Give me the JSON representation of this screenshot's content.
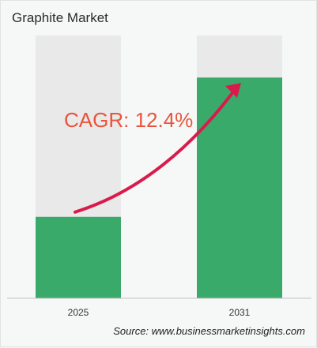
{
  "title": "Graphite Market",
  "source": "Source: www.businessmarketinsights.com",
  "annotation": "CAGR: 12.4%",
  "colors": {
    "bar_fill": "#3aaa6b",
    "bar_track": "#e9e9e9",
    "arrow": "#d81b4c",
    "cagr_text": "#e8553a",
    "background": "#f6f7f7"
  },
  "chart_data": {
    "type": "bar",
    "title": "Graphite Market",
    "categories": [
      "2025",
      "2031"
    ],
    "values": [
      0.31,
      0.84
    ],
    "ylim": [
      0,
      1
    ],
    "grid": false,
    "annotation": "CAGR: 12.4%"
  }
}
